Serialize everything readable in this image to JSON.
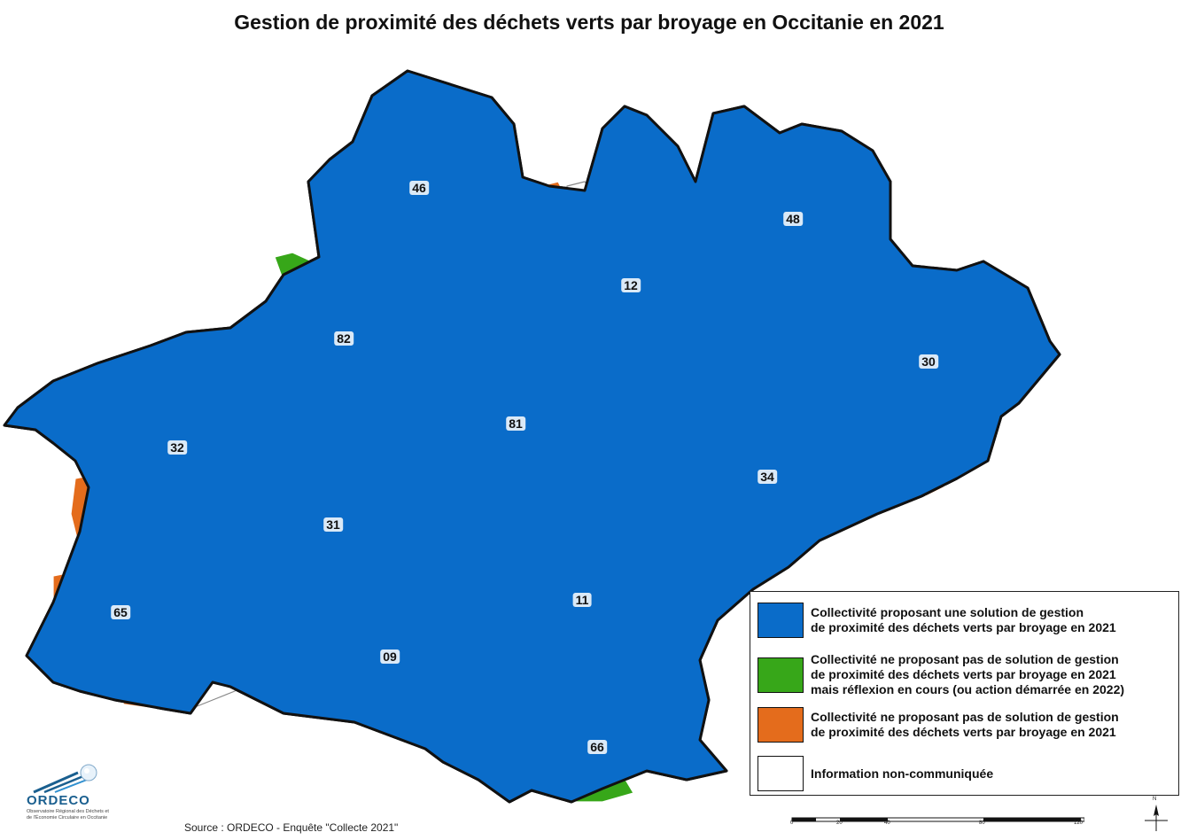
{
  "title": "Gestion de proximité des déchets verts par broyage en Occitanie en 2021",
  "colors": {
    "blue": "#0a6cc9",
    "green": "#37a719",
    "orange": "#e46c1c",
    "white": "#ffffff"
  },
  "departments": [
    {
      "code": "46"
    },
    {
      "code": "48"
    },
    {
      "code": "12"
    },
    {
      "code": "82"
    },
    {
      "code": "30"
    },
    {
      "code": "81"
    },
    {
      "code": "32"
    },
    {
      "code": "34"
    },
    {
      "code": "31"
    },
    {
      "code": "11"
    },
    {
      "code": "65"
    },
    {
      "code": "09"
    },
    {
      "code": "66"
    }
  ],
  "legend": {
    "items": [
      {
        "text": "Collectivité proposant une solution de gestion\nde proximité des déchets verts par broyage en 2021",
        "color": "#0a6cc9"
      },
      {
        "text": "Collectivité ne proposant pas de solution de gestion\nde proximité des déchets verts par broyage en 2021\nmais réflexion en cours (ou action démarrée en 2022)",
        "color": "#37a719"
      },
      {
        "text": "Collectivité ne proposant pas de solution de gestion\nde proximité des déchets verts par broyage en 2021",
        "color": "#e46c1c"
      },
      {
        "text": "Information non-communiquée",
        "color": "#ffffff"
      }
    ]
  },
  "logo": {
    "name": "ORDECO",
    "subtitle": "Observatoire Régional des Déchets et\nde l'Économie Circulaire en Occitanie"
  },
  "source": "Source : ORDECO - Enquête \"Collecte 2021\"",
  "scale": {
    "ticks": [
      "0",
      "20",
      "40",
      "80",
      "120"
    ]
  },
  "north_label": "N"
}
